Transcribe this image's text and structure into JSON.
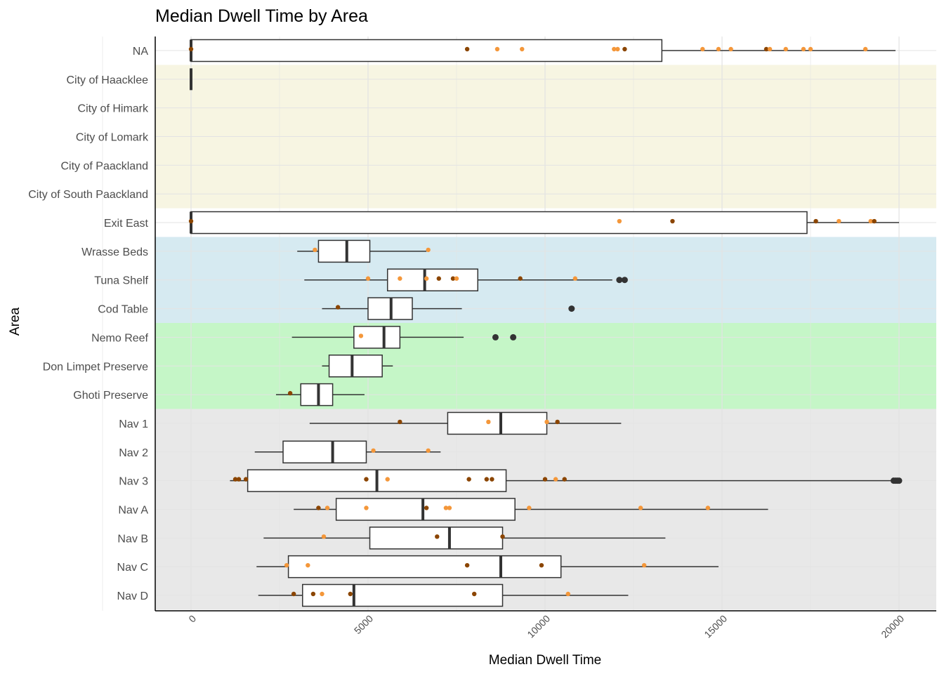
{
  "chart_data": {
    "type": "box",
    "title": "Median Dwell Time by Area",
    "xlabel": "Median Dwell Time",
    "ylabel": "Area",
    "xlim": [
      -1000,
      21000
    ],
    "xticks": [
      0,
      5000,
      10000,
      15000,
      20000
    ],
    "xtick_labels": [
      "0",
      "5000",
      "10000",
      "15000",
      "20000"
    ],
    "grid": true,
    "categories": [
      "NA",
      "City of Haacklee",
      "City of Himark",
      "City of Lomark",
      "City of Paackland",
      "City of South Paackland",
      "Exit East",
      "Wrasse Beds",
      "Tuna Shelf",
      "Cod Table",
      "Nemo Reef",
      "Don Limpet Preserve",
      "Ghoti Preserve",
      "Nav 1",
      "Nav 2",
      "Nav 3",
      "Nav A",
      "Nav B",
      "Nav C",
      "Nav D"
    ],
    "region_bands": [
      {
        "from": "City of Haacklee",
        "to": "City of South Paackland",
        "color": "#f7f5e2"
      },
      {
        "from": "Wrasse Beds",
        "to": "Cod Table",
        "color": "#d6eaf1"
      },
      {
        "from": "Nemo Reef",
        "to": "Ghoti Preserve",
        "color": "#c5f6c7"
      },
      {
        "from": "Nav 1",
        "to": "Nav D",
        "color": "#e8e8e8"
      }
    ],
    "point_colors": {
      "dark": "#8b4500",
      "light": "#f4973a",
      "outlier": "#333333"
    },
    "boxes": [
      {
        "category": "NA",
        "whisker_low": 0,
        "q1": 0,
        "median": 0,
        "q3": 13300,
        "whisker_high": 19900,
        "outliers": []
      },
      {
        "category": "City of Haacklee",
        "whisker_low": 0,
        "q1": 0,
        "median": 0,
        "q3": 0,
        "whisker_high": 0,
        "outliers": []
      },
      {
        "category": "Exit East",
        "whisker_low": 0,
        "q1": 0,
        "median": 0,
        "q3": 17400,
        "whisker_high": 20000,
        "outliers": []
      },
      {
        "category": "Wrasse Beds",
        "whisker_low": 3000,
        "q1": 3600,
        "median": 4400,
        "q3": 5050,
        "whisker_high": 6650,
        "outliers": []
      },
      {
        "category": "Tuna Shelf",
        "whisker_low": 3200,
        "q1": 5550,
        "median": 6600,
        "q3": 8100,
        "whisker_high": 11900,
        "outliers": [
          12100,
          12250
        ]
      },
      {
        "category": "Cod Table",
        "whisker_low": 3700,
        "q1": 5000,
        "median": 5650,
        "q3": 6250,
        "whisker_high": 7650,
        "outliers": [
          10750
        ]
      },
      {
        "category": "Nemo Reef",
        "whisker_low": 2850,
        "q1": 4600,
        "median": 5450,
        "q3": 5900,
        "whisker_high": 7700,
        "outliers": [
          8600,
          9100
        ]
      },
      {
        "category": "Don Limpet Preserve",
        "whisker_low": 3700,
        "q1": 3900,
        "median": 4550,
        "q3": 5400,
        "whisker_high": 5700,
        "outliers": []
      },
      {
        "category": "Ghoti Preserve",
        "whisker_low": 2400,
        "q1": 3100,
        "median": 3600,
        "q3": 4000,
        "whisker_high": 4900,
        "outliers": []
      },
      {
        "category": "Nav 1",
        "whisker_low": 3350,
        "q1": 7250,
        "median": 8750,
        "q3": 10050,
        "whisker_high": 12150,
        "outliers": []
      },
      {
        "category": "Nav 2",
        "whisker_low": 1800,
        "q1": 2600,
        "median": 4000,
        "q3": 4950,
        "whisker_high": 7050,
        "outliers": []
      },
      {
        "category": "Nav 3",
        "whisker_low": 1100,
        "q1": 1600,
        "median": 5250,
        "q3": 8900,
        "whisker_high": 19800,
        "outliers": [
          19850,
          19900,
          19950,
          20000
        ]
      },
      {
        "category": "Nav A",
        "whisker_low": 2900,
        "q1": 4100,
        "median": 6550,
        "q3": 9150,
        "whisker_high": 16300,
        "outliers": []
      },
      {
        "category": "Nav B",
        "whisker_low": 2050,
        "q1": 5050,
        "median": 7300,
        "q3": 8800,
        "whisker_high": 13400,
        "outliers": []
      },
      {
        "category": "Nav C",
        "whisker_low": 1850,
        "q1": 2750,
        "median": 8750,
        "q3": 10450,
        "whisker_high": 14900,
        "outliers": []
      },
      {
        "category": "Nav D",
        "whisker_low": 1900,
        "q1": 3150,
        "median": 4600,
        "q3": 8800,
        "whisker_high": 12350,
        "outliers": []
      }
    ],
    "points": [
      {
        "category": "NA",
        "x": 0,
        "shade": "dark"
      },
      {
        "category": "NA",
        "x": 7800,
        "shade": "dark"
      },
      {
        "category": "NA",
        "x": 8650,
        "shade": "light"
      },
      {
        "category": "NA",
        "x": 9350,
        "shade": "light"
      },
      {
        "category": "NA",
        "x": 11950,
        "shade": "light"
      },
      {
        "category": "NA",
        "x": 12050,
        "shade": "light"
      },
      {
        "category": "NA",
        "x": 12250,
        "shade": "dark"
      },
      {
        "category": "NA",
        "x": 14450,
        "shade": "light"
      },
      {
        "category": "NA",
        "x": 14900,
        "shade": "light"
      },
      {
        "category": "NA",
        "x": 15250,
        "shade": "light"
      },
      {
        "category": "NA",
        "x": 16250,
        "shade": "dark"
      },
      {
        "category": "NA",
        "x": 16350,
        "shade": "light"
      },
      {
        "category": "NA",
        "x": 16800,
        "shade": "light"
      },
      {
        "category": "NA",
        "x": 17300,
        "shade": "light"
      },
      {
        "category": "NA",
        "x": 17500,
        "shade": "light"
      },
      {
        "category": "NA",
        "x": 19050,
        "shade": "light"
      },
      {
        "category": "Exit East",
        "x": 0,
        "shade": "dark"
      },
      {
        "category": "Exit East",
        "x": 12100,
        "shade": "light"
      },
      {
        "category": "Exit East",
        "x": 13600,
        "shade": "dark"
      },
      {
        "category": "Exit East",
        "x": 17650,
        "shade": "dark"
      },
      {
        "category": "Exit East",
        "x": 18300,
        "shade": "light"
      },
      {
        "category": "Exit East",
        "x": 19200,
        "shade": "light"
      },
      {
        "category": "Exit East",
        "x": 19300,
        "shade": "dark"
      },
      {
        "category": "Wrasse Beds",
        "x": 3500,
        "shade": "light"
      },
      {
        "category": "Wrasse Beds",
        "x": 6700,
        "shade": "light"
      },
      {
        "category": "Tuna Shelf",
        "x": 5000,
        "shade": "light"
      },
      {
        "category": "Tuna Shelf",
        "x": 5900,
        "shade": "light"
      },
      {
        "category": "Tuna Shelf",
        "x": 6650,
        "shade": "light"
      },
      {
        "category": "Tuna Shelf",
        "x": 7000,
        "shade": "dark"
      },
      {
        "category": "Tuna Shelf",
        "x": 7400,
        "shade": "dark"
      },
      {
        "category": "Tuna Shelf",
        "x": 7500,
        "shade": "light"
      },
      {
        "category": "Tuna Shelf",
        "x": 9300,
        "shade": "dark"
      },
      {
        "category": "Tuna Shelf",
        "x": 10850,
        "shade": "light"
      },
      {
        "category": "Cod Table",
        "x": 4150,
        "shade": "dark"
      },
      {
        "category": "Nemo Reef",
        "x": 4800,
        "shade": "light"
      },
      {
        "category": "Ghoti Preserve",
        "x": 2800,
        "shade": "dark"
      },
      {
        "category": "Nav 1",
        "x": 5900,
        "shade": "dark"
      },
      {
        "category": "Nav 1",
        "x": 8400,
        "shade": "light"
      },
      {
        "category": "Nav 1",
        "x": 10050,
        "shade": "light"
      },
      {
        "category": "Nav 1",
        "x": 10350,
        "shade": "dark"
      },
      {
        "category": "Nav 2",
        "x": 5150,
        "shade": "light"
      },
      {
        "category": "Nav 2",
        "x": 6700,
        "shade": "light"
      },
      {
        "category": "Nav 3",
        "x": 1250,
        "shade": "dark"
      },
      {
        "category": "Nav 3",
        "x": 1350,
        "shade": "dark"
      },
      {
        "category": "Nav 3",
        "x": 1550,
        "shade": "dark"
      },
      {
        "category": "Nav 3",
        "x": 4950,
        "shade": "dark"
      },
      {
        "category": "Nav 3",
        "x": 5550,
        "shade": "light"
      },
      {
        "category": "Nav 3",
        "x": 7850,
        "shade": "dark"
      },
      {
        "category": "Nav 3",
        "x": 8350,
        "shade": "dark"
      },
      {
        "category": "Nav 3",
        "x": 8500,
        "shade": "dark"
      },
      {
        "category": "Nav 3",
        "x": 10000,
        "shade": "dark"
      },
      {
        "category": "Nav 3",
        "x": 10300,
        "shade": "light"
      },
      {
        "category": "Nav 3",
        "x": 10550,
        "shade": "dark"
      },
      {
        "category": "Nav A",
        "x": 3600,
        "shade": "dark"
      },
      {
        "category": "Nav A",
        "x": 3850,
        "shade": "light"
      },
      {
        "category": "Nav A",
        "x": 4950,
        "shade": "light"
      },
      {
        "category": "Nav A",
        "x": 6650,
        "shade": "dark"
      },
      {
        "category": "Nav A",
        "x": 7200,
        "shade": "light"
      },
      {
        "category": "Nav A",
        "x": 7300,
        "shade": "light"
      },
      {
        "category": "Nav A",
        "x": 9550,
        "shade": "light"
      },
      {
        "category": "Nav A",
        "x": 12700,
        "shade": "light"
      },
      {
        "category": "Nav A",
        "x": 14600,
        "shade": "light"
      },
      {
        "category": "Nav B",
        "x": 3750,
        "shade": "light"
      },
      {
        "category": "Nav B",
        "x": 6950,
        "shade": "dark"
      },
      {
        "category": "Nav B",
        "x": 8800,
        "shade": "dark"
      },
      {
        "category": "Nav C",
        "x": 2700,
        "shade": "light"
      },
      {
        "category": "Nav C",
        "x": 3300,
        "shade": "light"
      },
      {
        "category": "Nav C",
        "x": 7800,
        "shade": "dark"
      },
      {
        "category": "Nav C",
        "x": 9900,
        "shade": "dark"
      },
      {
        "category": "Nav C",
        "x": 12800,
        "shade": "light"
      },
      {
        "category": "Nav D",
        "x": 2900,
        "shade": "dark"
      },
      {
        "category": "Nav D",
        "x": 3450,
        "shade": "dark"
      },
      {
        "category": "Nav D",
        "x": 3700,
        "shade": "light"
      },
      {
        "category": "Nav D",
        "x": 4500,
        "shade": "dark"
      },
      {
        "category": "Nav D",
        "x": 8000,
        "shade": "dark"
      },
      {
        "category": "Nav D",
        "x": 10650,
        "shade": "light"
      }
    ]
  }
}
